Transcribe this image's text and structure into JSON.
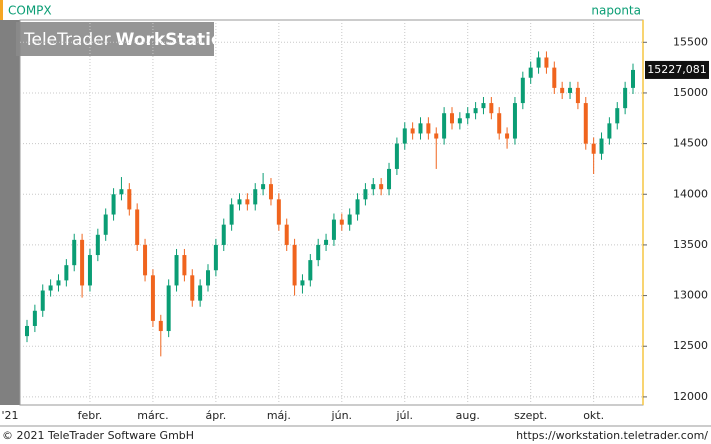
{
  "chart_data": {
    "type": "candlestick",
    "symbol": "COMPX",
    "interval": "naponta",
    "watermark": [
      "TeleTrader",
      "WorkStation"
    ],
    "footer_left": "© 2021 TeleTrader Software GmbH",
    "footer_right": "https://workstation.teletrader.com/",
    "last_close_label": "15227,081",
    "up_color": "#0a9d74",
    "down_color": "#f0641e",
    "grid": true,
    "categories": [
      "'21",
      null,
      null,
      null,
      null,
      null,
      null,
      null,
      "febr.",
      null,
      null,
      null,
      null,
      null,
      null,
      null,
      "márc.",
      null,
      null,
      null,
      null,
      null,
      null,
      null,
      "ápr.",
      null,
      null,
      null,
      null,
      null,
      null,
      null,
      "máj.",
      null,
      null,
      null,
      null,
      null,
      null,
      null,
      "jún.",
      null,
      null,
      null,
      null,
      null,
      null,
      null,
      "júl.",
      null,
      null,
      null,
      null,
      null,
      null,
      null,
      "aug.",
      null,
      null,
      null,
      null,
      null,
      null,
      null,
      "szept.",
      null,
      null,
      null,
      null,
      null,
      null,
      null,
      "okt.",
      null,
      null,
      null,
      null,
      null
    ],
    "open": [
      12600,
      12700,
      12850,
      13050,
      13100,
      13150,
      13300,
      13550,
      13100,
      13400,
      13600,
      13800,
      14000,
      14050,
      13850,
      13500,
      13200,
      12750,
      12650,
      13100,
      13400,
      13200,
      12950,
      13100,
      13250,
      13500,
      13700,
      13900,
      13950,
      13900,
      14050,
      14100,
      13950,
      13700,
      13500,
      13100,
      13150,
      13350,
      13500,
      13550,
      13750,
      13700,
      13800,
      13950,
      14050,
      14100,
      14050,
      14250,
      14500,
      14650,
      14600,
      14700,
      14600,
      14550,
      14800,
      14700,
      14750,
      14800,
      14850,
      14900,
      14800,
      14600,
      14550,
      14900,
      15150,
      15250,
      15350,
      15250,
      15050,
      15000,
      15050,
      14900,
      14500,
      14400,
      14550,
      14700,
      14850,
      15050
    ],
    "high": [
      12760,
      12910,
      13110,
      13160,
      13210,
      13360,
      13610,
      13610,
      13460,
      13660,
      13860,
      14060,
      14170,
      14110,
      13910,
      13560,
      13260,
      12810,
      13160,
      13460,
      13460,
      13260,
      13160,
      13310,
      13560,
      13760,
      13960,
      14010,
      14010,
      14110,
      14210,
      14160,
      14010,
      13760,
      13560,
      13210,
      13410,
      13560,
      13610,
      13810,
      13810,
      13860,
      14010,
      14110,
      14160,
      14160,
      14310,
      14560,
      14710,
      14710,
      14760,
      14760,
      14660,
      14860,
      14860,
      14810,
      14860,
      14910,
      14960,
      14960,
      14860,
      14660,
      14960,
      15210,
      15310,
      15410,
      15410,
      15310,
      15110,
      15110,
      15110,
      14960,
      14560,
      14610,
      14760,
      14910,
      15110,
      15290
    ],
    "low": [
      12540,
      12640,
      12790,
      12990,
      13040,
      13090,
      13240,
      12980,
      13040,
      13340,
      13540,
      13740,
      13940,
      13790,
      13440,
      13140,
      12690,
      12400,
      12590,
      13040,
      13140,
      12890,
      12890,
      13040,
      13190,
      13440,
      13640,
      13840,
      13840,
      13840,
      13990,
      13890,
      13640,
      13440,
      13000,
      13020,
      13090,
      13290,
      13440,
      13490,
      13640,
      13640,
      13740,
      13890,
      13990,
      13990,
      13990,
      14190,
      14440,
      14540,
      14540,
      14540,
      14250,
      14490,
      14640,
      14640,
      14690,
      14740,
      14790,
      14740,
      14540,
      14450,
      14490,
      14840,
      15090,
      15190,
      15190,
      14990,
      14940,
      14940,
      14840,
      14440,
      14200,
      14340,
      14490,
      14640,
      14790,
      14990
    ],
    "close": [
      12700,
      12850,
      13050,
      13100,
      13150,
      13300,
      13550,
      13100,
      13400,
      13600,
      13800,
      14000,
      14050,
      13850,
      13500,
      13200,
      12750,
      12650,
      13100,
      13400,
      13200,
      12950,
      13100,
      13250,
      13500,
      13700,
      13900,
      13950,
      13900,
      14050,
      14100,
      13950,
      13700,
      13500,
      13100,
      13150,
      13350,
      13500,
      13550,
      13750,
      13700,
      13800,
      13950,
      14050,
      14100,
      14050,
      14250,
      14500,
      14650,
      14600,
      14700,
      14600,
      14550,
      14800,
      14700,
      14750,
      14800,
      14850,
      14900,
      14800,
      14600,
      14550,
      14900,
      15150,
      15250,
      15350,
      15250,
      15050,
      15000,
      15050,
      14900,
      14500,
      14400,
      14550,
      14700,
      14850,
      15050,
      15227.081
    ],
    "ylim": [
      11920,
      15720
    ],
    "yticks": [
      12000,
      12500,
      13000,
      13500,
      14000,
      14500,
      15000,
      15500
    ]
  }
}
